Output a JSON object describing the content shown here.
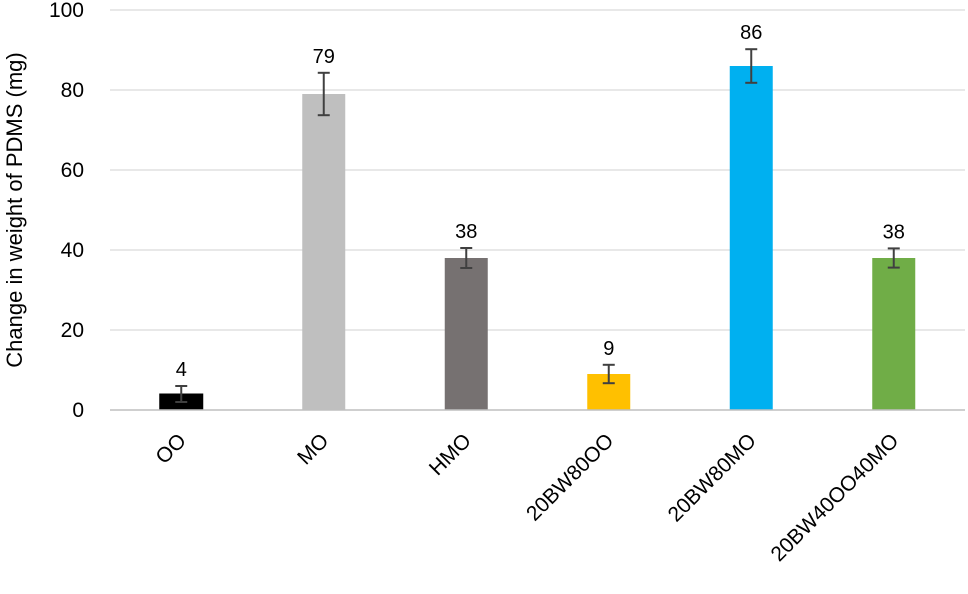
{
  "chart_data": {
    "type": "bar",
    "title": "",
    "xlabel": "",
    "ylabel": "Change in weight of PDMS (mg)",
    "ylim": [
      0,
      100
    ],
    "yticks": [
      0,
      20,
      40,
      60,
      80,
      100
    ],
    "grid": true,
    "legend": "none",
    "categories": [
      "OO",
      "MO",
      "HMO",
      "20BW80OO",
      "20BW80MO",
      "20BW40OO40MO"
    ],
    "values": [
      4,
      79,
      38,
      9,
      86,
      38
    ],
    "value_labels": [
      "4",
      "79",
      "38",
      "9",
      "86",
      "38"
    ],
    "error_bars": [
      2,
      5.3,
      2.5,
      2.3,
      4.2,
      2.4
    ],
    "colors": [
      "#000000",
      "#bfbfbf",
      "#767171",
      "#ffc000",
      "#00b0f0",
      "#70ad47"
    ]
  }
}
